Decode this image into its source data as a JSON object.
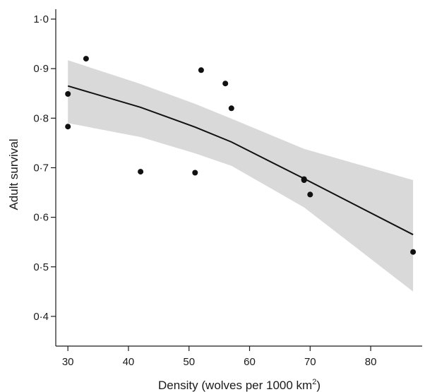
{
  "chart_data": {
    "type": "scatter",
    "title": "",
    "xlabel": "Density (wolves per 1000 km",
    "xlabel_superscript": "2",
    "xlabel_suffix": ")",
    "ylabel": "Adult survival",
    "xlim": [
      28,
      88.5
    ],
    "ylim": [
      0.34,
      1.02
    ],
    "x_ticks": [
      30,
      40,
      50,
      60,
      70,
      80
    ],
    "x_tick_labels": [
      "30",
      "40",
      "50",
      "60",
      "70",
      "80"
    ],
    "y_ticks": [
      0.4,
      0.5,
      0.6,
      0.7,
      0.8,
      0.9,
      1.0
    ],
    "y_tick_labels": [
      "0·4",
      "0·5",
      "0·6",
      "0·7",
      "0·8",
      "0·9",
      "1·0"
    ],
    "grid": false,
    "legend": "none",
    "series": [
      {
        "type": "scatter",
        "x": [
          30,
          30,
          33,
          42,
          51,
          52,
          56,
          57,
          69,
          69,
          70,
          87
        ],
        "y": [
          0.849,
          0.783,
          0.92,
          0.692,
          0.69,
          0.897,
          0.87,
          0.82,
          0.677,
          0.675,
          0.646,
          0.53
        ]
      },
      {
        "type": "line",
        "x": [
          30,
          42,
          51,
          57,
          69,
          87
        ],
        "y": [
          0.865,
          0.822,
          0.782,
          0.752,
          0.678,
          0.565
        ]
      },
      {
        "type": "area",
        "x": [
          30,
          42,
          51,
          57,
          69,
          87
        ],
        "y_upper": [
          0.917,
          0.869,
          0.829,
          0.799,
          0.738,
          0.675
        ],
        "y_lower": [
          0.79,
          0.762,
          0.729,
          0.704,
          0.62,
          0.45
        ]
      }
    ],
    "colors": {
      "points": "#111111",
      "line": "#111111",
      "band": "#d9d9d9",
      "axis": "#1a1a1a"
    }
  }
}
